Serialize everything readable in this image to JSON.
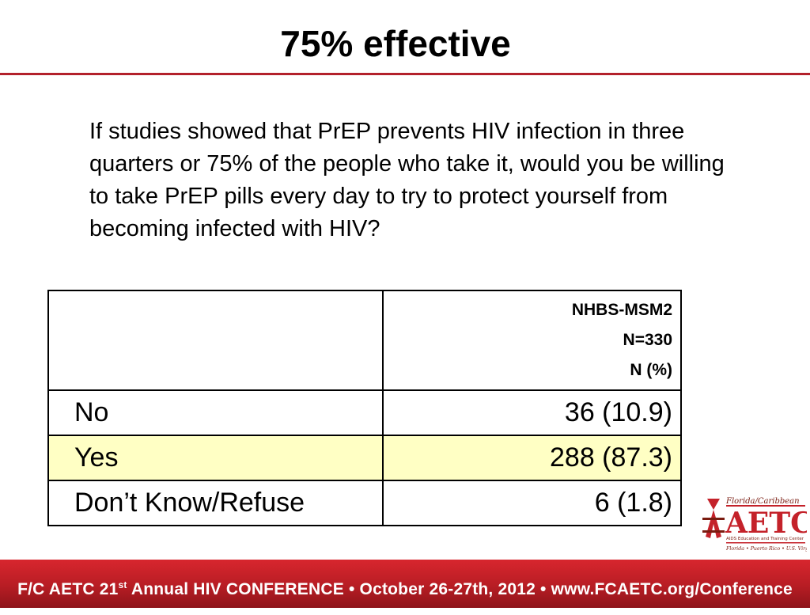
{
  "slide": {
    "title": "75% effective",
    "question": "If studies showed that PrEP prevents HIV infection in three quarters or 75% of the people who take it, would you be willing to take PrEP pills every day to try to protect yourself from becoming infected with HIV?"
  },
  "table": {
    "header": {
      "study": "NHBS-MSM2",
      "n": "N=330",
      "unit": "N (%)"
    },
    "rows": [
      {
        "label": "No",
        "value": "36 (10.9)"
      },
      {
        "label": "Yes",
        "value": "288 (87.3)"
      },
      {
        "label": "Don’t Know/Refuse",
        "value": "6 (1.8)"
      }
    ],
    "highlight_color": "#ffffc4"
  },
  "logo": {
    "top_text": "Florida/Caribbean",
    "main_text": "AETC",
    "sub_text": "AIDS Education and Training Center",
    "bottom_text": "Florida • Puerto Rico • U.S. Virgin Islands"
  },
  "footer": {
    "prefix": "F/C AETC 21",
    "ordinal": "st",
    "suffix": " Annual HIV CONFERENCE • October 26-27th, 2012 • www.FCAETC.org/Conference"
  },
  "colors": {
    "accent_red": "#b3212b",
    "footer_red": "#c4222a"
  }
}
